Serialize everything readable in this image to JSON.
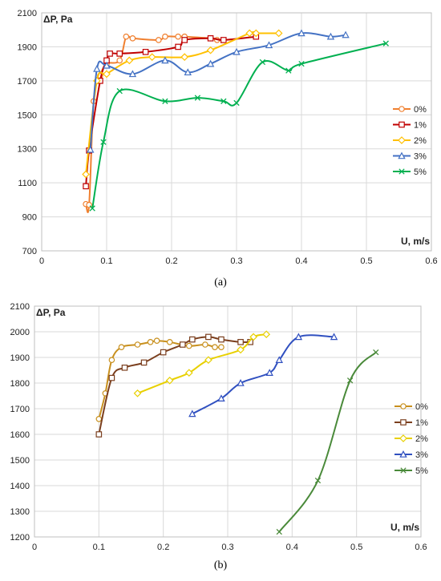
{
  "captions": [
    "(a)",
    "(b)"
  ],
  "chart_data": [
    {
      "type": "line",
      "panel": "(a)",
      "ylabel": "ΔP, Pa",
      "xlabel": "U, m/s",
      "xlim": [
        0,
        0.6
      ],
      "ylim": [
        700,
        2100
      ],
      "xticks": [
        0,
        0.1,
        0.2,
        0.3,
        0.4,
        0.5,
        0.6
      ],
      "yticks": [
        700,
        900,
        1100,
        1300,
        1500,
        1700,
        1900,
        2100
      ],
      "grid": true,
      "legend": "right",
      "series": [
        {
          "name": "0%",
          "color": "#f08030",
          "marker": "circle",
          "x": [
            0.068,
            0.073,
            0.08,
            0.09,
            0.1,
            0.12,
            0.13,
            0.14,
            0.18,
            0.19,
            0.21,
            0.22,
            0.26,
            0.27
          ],
          "y": [
            975,
            970,
            1580,
            1730,
            1800,
            1820,
            1960,
            1950,
            1940,
            1960,
            1960,
            1960,
            1950,
            1940
          ]
        },
        {
          "name": "1%",
          "color": "#c00000",
          "marker": "square",
          "x": [
            0.068,
            0.073,
            0.09,
            0.1,
            0.105,
            0.12,
            0.16,
            0.21,
            0.22,
            0.26,
            0.28,
            0.33
          ],
          "y": [
            1080,
            1290,
            1700,
            1820,
            1860,
            1860,
            1870,
            1900,
            1940,
            1950,
            1940,
            1960
          ]
        },
        {
          "name": "2%",
          "color": "#ffc000",
          "marker": "diamond",
          "x": [
            0.068,
            0.085,
            0.1,
            0.135,
            0.17,
            0.22,
            0.26,
            0.32,
            0.33,
            0.365
          ],
          "y": [
            1150,
            1700,
            1740,
            1820,
            1840,
            1840,
            1880,
            1980,
            1980,
            1980
          ]
        },
        {
          "name": "3%",
          "color": "#4472c4",
          "marker": "triangle",
          "x": [
            0.075,
            0.085,
            0.1,
            0.14,
            0.19,
            0.225,
            0.26,
            0.3,
            0.35,
            0.4,
            0.445,
            0.468
          ],
          "y": [
            1295,
            1770,
            1790,
            1740,
            1820,
            1750,
            1800,
            1870,
            1910,
            1980,
            1960,
            1970
          ]
        },
        {
          "name": "5%",
          "color": "#00b050",
          "marker": "x",
          "x": [
            0.078,
            0.095,
            0.12,
            0.19,
            0.24,
            0.28,
            0.3,
            0.34,
            0.38,
            0.4,
            0.53
          ],
          "y": [
            950,
            1340,
            1640,
            1580,
            1600,
            1580,
            1570,
            1810,
            1760,
            1800,
            1920
          ]
        }
      ]
    },
    {
      "type": "line",
      "panel": "(b)",
      "ylabel": "ΔP, Pa",
      "xlabel": "U, m/s",
      "xlim": [
        0,
        0.6
      ],
      "ylim": [
        1200,
        2100
      ],
      "xticks": [
        0,
        0.1,
        0.2,
        0.3,
        0.4,
        0.5,
        0.6
      ],
      "yticks": [
        1200,
        1300,
        1400,
        1500,
        1600,
        1700,
        1800,
        1900,
        2000,
        2100
      ],
      "grid": true,
      "legend": "right",
      "series": [
        {
          "name": "0%",
          "color": "#c8901e",
          "marker": "circle",
          "x": [
            0.1,
            0.11,
            0.12,
            0.135,
            0.16,
            0.18,
            0.19,
            0.21,
            0.24,
            0.265,
            0.28,
            0.29
          ],
          "y": [
            1660,
            1760,
            1890,
            1940,
            1950,
            1960,
            1965,
            1960,
            1945,
            1950,
            1940,
            1940
          ]
        },
        {
          "name": "1%",
          "color": "#7b3f1e",
          "marker": "square",
          "x": [
            0.1,
            0.12,
            0.14,
            0.17,
            0.2,
            0.23,
            0.245,
            0.27,
            0.29,
            0.32,
            0.335
          ],
          "y": [
            1600,
            1820,
            1860,
            1880,
            1920,
            1950,
            1970,
            1980,
            1970,
            1960,
            1960
          ]
        },
        {
          "name": "2%",
          "color": "#e8d000",
          "marker": "diamond",
          "x": [
            0.16,
            0.21,
            0.24,
            0.27,
            0.32,
            0.34,
            0.36
          ],
          "y": [
            1760,
            1810,
            1840,
            1890,
            1930,
            1980,
            1990
          ]
        },
        {
          "name": "3%",
          "color": "#3050c0",
          "marker": "triangle",
          "x": [
            0.245,
            0.29,
            0.32,
            0.365,
            0.38,
            0.41,
            0.465
          ],
          "y": [
            1680,
            1740,
            1800,
            1840,
            1890,
            1980,
            1980
          ]
        },
        {
          "name": "5%",
          "color": "#4a8a3a",
          "marker": "x",
          "x": [
            0.38,
            0.44,
            0.49,
            0.53
          ],
          "y": [
            1220,
            1420,
            1810,
            1920
          ]
        }
      ]
    }
  ]
}
